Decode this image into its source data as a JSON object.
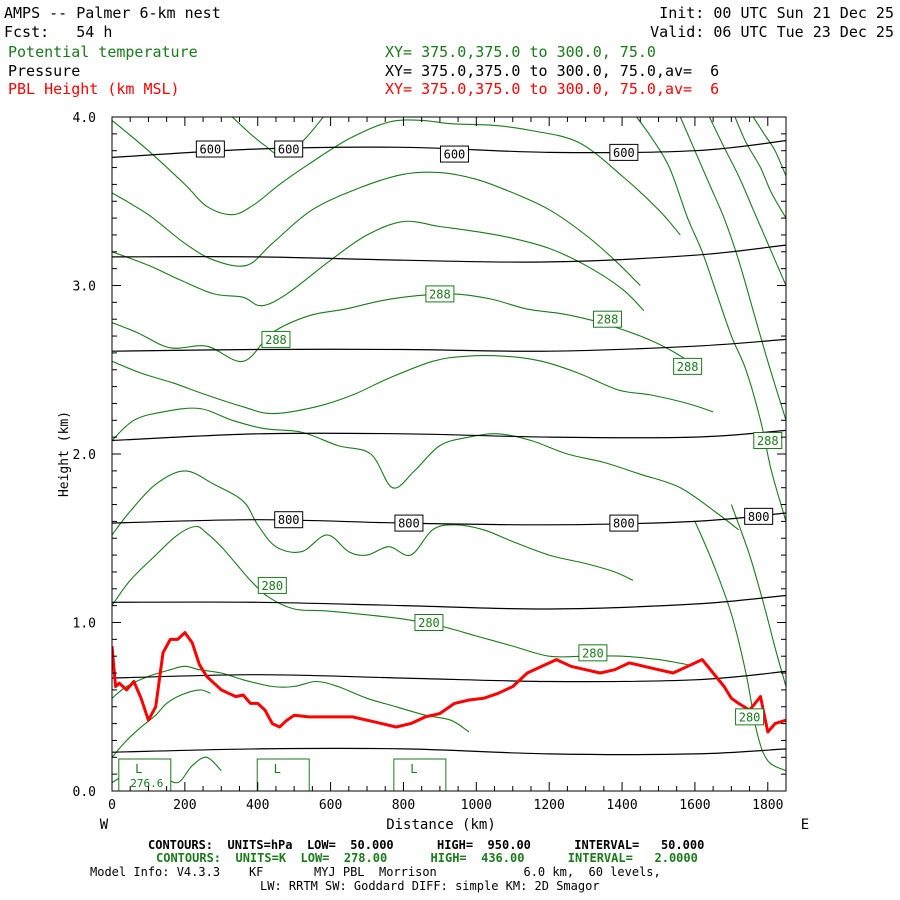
{
  "header": {
    "title": "AMPS -- Palmer 6-km nest",
    "init": "Init: 00 UTC Sun 21 Dec 25",
    "fcst": "Fcst:   54 h",
    "valid": "Valid: 06 UTC Tue 23 Dec 25",
    "layers": [
      {
        "name": "Potential temperature",
        "xy": "XY= 375.0,375.0 to 300.0, 75.0",
        "color": "#1a7a1a"
      },
      {
        "name": "Pressure",
        "xy": "XY= 375.0,375.0 to 300.0, 75.0,av=  6",
        "color": "#000000"
      },
      {
        "name": "PBL Height (km MSL)",
        "xy": "XY= 375.0,375.0 to 300.0, 75.0,av=  6",
        "color": "#ff0000"
      }
    ]
  },
  "chart_data": {
    "type": "line",
    "xlabel": "Distance (km)",
    "ylabel": "Height (km)",
    "xlim": [
      0,
      1850
    ],
    "ylim": [
      0,
      4.0
    ],
    "xticks": [
      "0",
      "200",
      "400",
      "600",
      "800",
      "1000",
      "1200",
      "1400",
      "1600",
      "1800"
    ],
    "yticks": [
      "0.0",
      "1.0",
      "2.0",
      "3.0",
      "4.0"
    ],
    "x_left_label": "W",
    "x_right_label": "E",
    "pressure_contours": [
      {
        "x": [
          0,
          400,
          800,
          1200,
          1600,
          1850
        ],
        "y": [
          3.76,
          3.81,
          3.82,
          3.79,
          3.8,
          3.86
        ]
      },
      {
        "x": [
          0,
          400,
          800,
          1200,
          1600,
          1850
        ],
        "y": [
          3.17,
          3.17,
          3.15,
          3.14,
          3.18,
          3.24
        ]
      },
      {
        "x": [
          0,
          400,
          800,
          1200,
          1600,
          1850
        ],
        "y": [
          2.61,
          2.62,
          2.62,
          2.61,
          2.64,
          2.68
        ]
      },
      {
        "x": [
          0,
          400,
          800,
          1200,
          1600,
          1850
        ],
        "y": [
          2.08,
          2.12,
          2.12,
          2.1,
          2.1,
          2.14
        ]
      },
      {
        "x": [
          0,
          400,
          800,
          1200,
          1600,
          1850
        ],
        "y": [
          1.59,
          1.61,
          1.59,
          1.58,
          1.6,
          1.65
        ]
      },
      {
        "x": [
          0,
          400,
          800,
          1200,
          1600,
          1850
        ],
        "y": [
          1.12,
          1.12,
          1.1,
          1.08,
          1.11,
          1.16
        ]
      },
      {
        "x": [
          0,
          400,
          800,
          1200,
          1600,
          1850
        ],
        "y": [
          0.67,
          0.69,
          0.67,
          0.65,
          0.66,
          0.71
        ]
      },
      {
        "x": [
          0,
          400,
          800,
          1200,
          1600,
          1850
        ],
        "y": [
          0.23,
          0.25,
          0.25,
          0.22,
          0.22,
          0.25
        ]
      }
    ],
    "pressure_labels": [
      {
        "text": "600",
        "x": 270,
        "y": 3.81
      },
      {
        "text": "600",
        "x": 485,
        "y": 3.81
      },
      {
        "text": "600",
        "x": 940,
        "y": 3.78
      },
      {
        "text": "600",
        "x": 1405,
        "y": 3.79
      },
      {
        "text": "800",
        "x": 485,
        "y": 1.61
      },
      {
        "text": "800",
        "x": 815,
        "y": 1.59
      },
      {
        "text": "800",
        "x": 1405,
        "y": 1.59
      },
      {
        "text": "800",
        "x": 1775,
        "y": 1.63
      }
    ],
    "theta_contours": [
      {
        "x": [
          330,
          380,
          420,
          460,
          520,
          580
        ],
        "y": [
          4.0,
          3.9,
          3.83,
          3.78,
          3.85,
          4.0
        ]
      },
      {
        "x": [
          0,
          100,
          200,
          260,
          330,
          390,
          460,
          540,
          650,
          760,
          850,
          930,
          1050,
          1150,
          1280,
          1400,
          1500,
          1560
        ],
        "y": [
          3.98,
          3.8,
          3.6,
          3.47,
          3.42,
          3.48,
          3.6,
          3.72,
          3.87,
          3.97,
          3.98,
          3.96,
          3.95,
          3.92,
          3.85,
          3.65,
          3.45,
          3.3
        ]
      },
      {
        "x": [
          0,
          100,
          200,
          280,
          370,
          440,
          550,
          680,
          800,
          900,
          1000,
          1100,
          1200,
          1300,
          1380,
          1450
        ],
        "y": [
          3.55,
          3.42,
          3.25,
          3.15,
          3.12,
          3.25,
          3.45,
          3.58,
          3.66,
          3.67,
          3.63,
          3.55,
          3.45,
          3.3,
          3.15,
          3.0
        ]
      },
      {
        "x": [
          0,
          100,
          190,
          280,
          360,
          410,
          480,
          600,
          700,
          800,
          900,
          1000,
          1100,
          1200,
          1300,
          1400,
          1460
        ],
        "y": [
          3.2,
          3.12,
          3.03,
          2.95,
          2.93,
          2.88,
          2.95,
          3.15,
          3.3,
          3.38,
          3.35,
          3.32,
          3.28,
          3.22,
          3.12,
          2.98,
          2.85
        ]
      },
      {
        "x": [
          0,
          70,
          160,
          260,
          360,
          440,
          540,
          640,
          740,
          840,
          940,
          1040,
          1140,
          1240,
          1340,
          1450,
          1530,
          1620
        ],
        "y": [
          2.78,
          2.72,
          2.63,
          2.64,
          2.55,
          2.72,
          2.82,
          2.86,
          2.91,
          2.94,
          2.95,
          2.92,
          2.86,
          2.83,
          2.78,
          2.7,
          2.62,
          2.5
        ]
      },
      {
        "x": [
          0,
          80,
          170,
          260,
          360,
          440,
          560,
          660,
          760,
          880,
          970,
          1080,
          1180,
          1280,
          1390,
          1480,
          1580,
          1650
        ],
        "y": [
          2.55,
          2.48,
          2.42,
          2.35,
          2.28,
          2.24,
          2.28,
          2.35,
          2.45,
          2.55,
          2.58,
          2.58,
          2.55,
          2.48,
          2.38,
          2.35,
          2.3,
          2.25
        ]
      },
      {
        "x": [
          0,
          60,
          140,
          240,
          330,
          420,
          520,
          620,
          710,
          770,
          830,
          900,
          980,
          1060,
          1150,
          1250,
          1350,
          1450,
          1560,
          1660,
          1720
        ],
        "y": [
          2.08,
          2.2,
          2.25,
          2.27,
          2.2,
          2.15,
          2.13,
          2.05,
          2.0,
          1.8,
          1.9,
          2.05,
          2.1,
          2.12,
          2.08,
          2.0,
          1.95,
          1.88,
          1.8,
          1.65,
          1.55
        ]
      },
      {
        "x": [
          0,
          50,
          120,
          200,
          280,
          360,
          400,
          450,
          520,
          590,
          650,
          700,
          760,
          820,
          880,
          940,
          1020,
          1100,
          1200,
          1300,
          1380,
          1430
        ],
        "y": [
          1.52,
          1.66,
          1.82,
          1.9,
          1.82,
          1.72,
          1.58,
          1.45,
          1.42,
          1.52,
          1.42,
          1.4,
          1.45,
          1.4,
          1.55,
          1.58,
          1.55,
          1.48,
          1.4,
          1.35,
          1.3,
          1.25
        ]
      },
      {
        "x": [
          0,
          50,
          120,
          180,
          230,
          260,
          300,
          340,
          380,
          430,
          500,
          580,
          680,
          800,
          900,
          1000,
          1100,
          1200,
          1300,
          1400,
          1500,
          1580
        ],
        "y": [
          1.1,
          1.25,
          1.4,
          1.52,
          1.57,
          1.53,
          1.45,
          1.35,
          1.25,
          1.15,
          1.08,
          1.07,
          1.05,
          1.02,
          0.98,
          0.92,
          0.86,
          0.8,
          0.8,
          0.8,
          0.78,
          0.75
        ]
      },
      {
        "x": [
          0,
          40,
          100,
          160,
          200,
          240,
          300,
          360,
          440,
          500,
          560,
          620,
          700,
          780,
          860,
          930,
          980
        ],
        "y": [
          0.55,
          0.62,
          0.68,
          0.72,
          0.74,
          0.72,
          0.7,
          0.66,
          0.62,
          0.62,
          0.65,
          0.62,
          0.55,
          0.5,
          0.45,
          0.42,
          0.35
        ]
      },
      {
        "x": [
          0,
          40,
          80,
          120,
          150,
          190,
          240,
          270
        ],
        "y": [
          0.2,
          0.3,
          0.38,
          0.45,
          0.52,
          0.57,
          0.6,
          0.58
        ]
      },
      {
        "x": [
          0,
          40,
          80,
          130,
          180,
          220,
          260,
          300
        ],
        "y": [
          0.05,
          0.1,
          0.12,
          0.1,
          0.05,
          0.15,
          0.2,
          0.12
        ]
      },
      {
        "x": [
          1440,
          1480,
          1530,
          1580,
          1620,
          1660,
          1700,
          1740,
          1780,
          1810,
          1850
        ],
        "y": [
          4.0,
          3.88,
          3.7,
          3.4,
          3.2,
          2.95,
          2.7,
          2.5,
          2.2,
          1.9,
          1.6
        ]
      },
      {
        "x": [
          1560,
          1600,
          1640,
          1680,
          1720,
          1760,
          1800,
          1850
        ],
        "y": [
          4.0,
          3.8,
          3.6,
          3.4,
          3.15,
          2.85,
          2.55,
          2.2
        ]
      },
      {
        "x": [
          1640,
          1680,
          1720,
          1760,
          1800,
          1850
        ],
        "y": [
          4.0,
          3.82,
          3.65,
          3.45,
          3.25,
          3.0
        ]
      },
      {
        "x": [
          1710,
          1740,
          1780,
          1810,
          1850
        ],
        "y": [
          4.0,
          3.85,
          3.7,
          3.55,
          3.4
        ]
      },
      {
        "x": [
          1760,
          1790,
          1820,
          1850
        ],
        "y": [
          4.0,
          3.9,
          3.8,
          3.65
        ]
      },
      {
        "x": [
          1600,
          1650,
          1700,
          1740,
          1770,
          1800,
          1850
        ],
        "y": [
          1.6,
          1.35,
          1.05,
          0.7,
          0.35,
          0.18,
          0.12
        ]
      },
      {
        "x": [
          1700,
          1750,
          1790,
          1820,
          1850
        ],
        "y": [
          1.7,
          1.4,
          1.1,
          0.85,
          0.62
        ]
      }
    ],
    "theta_labels": [
      {
        "text": "288",
        "x": 900,
        "y": 2.95
      },
      {
        "text": "288",
        "x": 1360,
        "y": 2.8
      },
      {
        "text": "288",
        "x": 450,
        "y": 2.68
      },
      {
        "text": "288",
        "x": 1580,
        "y": 2.52
      },
      {
        "text": "288",
        "x": 1800,
        "y": 2.08
      },
      {
        "text": "280",
        "x": 440,
        "y": 1.22
      },
      {
        "text": "280",
        "x": 870,
        "y": 1.0
      },
      {
        "text": "280",
        "x": 1320,
        "y": 0.82
      },
      {
        "text": "280",
        "x": 1750,
        "y": 0.44
      }
    ],
    "lows": [
      {
        "text": "L",
        "value": "276.6",
        "x": 90
      },
      {
        "text": "L",
        "value": "",
        "x": 470
      },
      {
        "text": "L",
        "value": "",
        "x": 845
      }
    ],
    "series": [
      {
        "name": "PBL Height (km MSL)",
        "x": [
          0,
          10,
          20,
          40,
          60,
          80,
          100,
          120,
          140,
          160,
          180,
          200,
          220,
          240,
          260,
          280,
          300,
          320,
          340,
          360,
          380,
          400,
          420,
          440,
          460,
          480,
          500,
          540,
          580,
          620,
          660,
          700,
          740,
          780,
          820,
          860,
          900,
          940,
          980,
          1020,
          1060,
          1100,
          1140,
          1180,
          1220,
          1260,
          1300,
          1340,
          1380,
          1420,
          1460,
          1500,
          1540,
          1580,
          1620,
          1650,
          1680,
          1700,
          1720,
          1750,
          1780,
          1800,
          1820,
          1850
        ],
        "y": [
          0.86,
          0.62,
          0.64,
          0.6,
          0.65,
          0.55,
          0.42,
          0.5,
          0.82,
          0.9,
          0.9,
          0.94,
          0.88,
          0.75,
          0.68,
          0.64,
          0.6,
          0.58,
          0.56,
          0.57,
          0.52,
          0.52,
          0.48,
          0.4,
          0.38,
          0.42,
          0.45,
          0.44,
          0.44,
          0.44,
          0.44,
          0.42,
          0.4,
          0.38,
          0.4,
          0.44,
          0.46,
          0.52,
          0.54,
          0.55,
          0.58,
          0.62,
          0.7,
          0.74,
          0.78,
          0.74,
          0.72,
          0.7,
          0.72,
          0.76,
          0.74,
          0.72,
          0.7,
          0.74,
          0.78,
          0.7,
          0.62,
          0.55,
          0.52,
          0.48,
          0.56,
          0.35,
          0.4,
          0.42
        ],
        "color": "#ff0000"
      }
    ]
  },
  "footer": {
    "line1": "CONTOURS:  UNITS=hPa  LOW=  50.000      HIGH=  950.00      INTERVAL=   50.000",
    "line2": "CONTOURS:  UNITS=K  LOW=  278.00      HIGH=  436.00      INTERVAL=   2.0000",
    "line3": "Model Info: V4.3.3    KF       MYJ PBL  Morrison            6.0 km,  60 levels,",
    "line4": "LW: RRTM SW: Goddard DIFF: simple KM: 2D Smagor"
  },
  "colors": {
    "pressure": "#000000",
    "theta": "#1a7a1a",
    "pbl": "#ff0000"
  }
}
